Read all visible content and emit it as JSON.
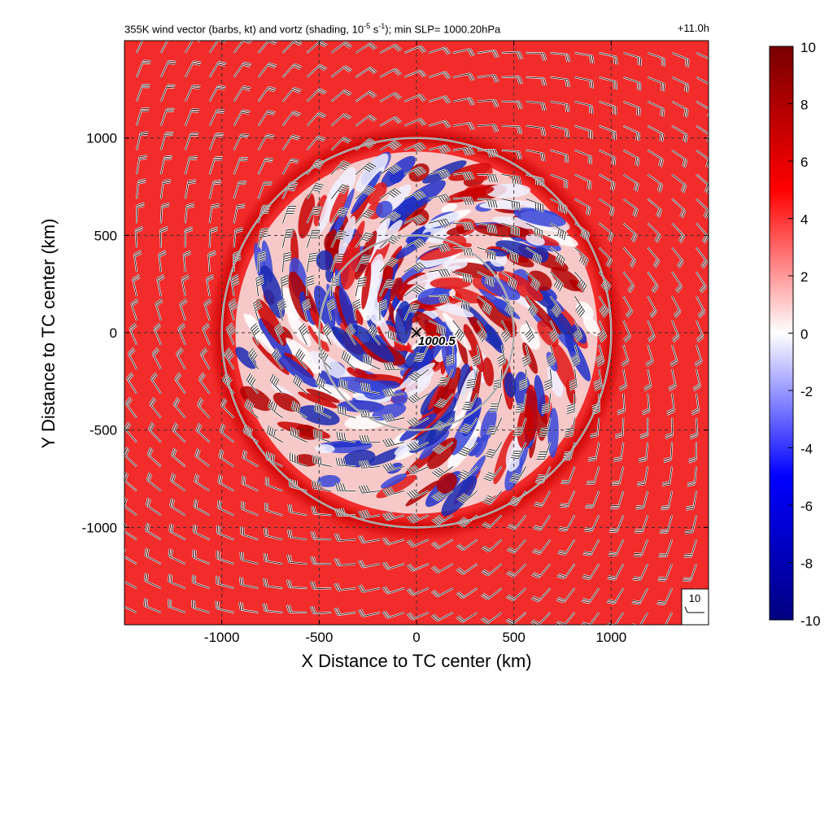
{
  "title_left_pre": "355K wind vector (barbs, kt) and vortz (shading, 10",
  "title_left_exp1": "-5",
  "title_left_mid": " s",
  "title_left_exp2": "-1",
  "title_left_post": "); min SLP= 1000.20hPa",
  "title_right": "+11.0h",
  "colors": {
    "ambient_red": "#f22b2b",
    "ring_red": "#c80000",
    "blue": "#2030c8",
    "white": "#ffffff",
    "ring_line": "#c8c8c8",
    "grid": "#333333"
  },
  "chart_data": {
    "type": "heatmap",
    "title": "355K wind vector (barbs, kt) and vortz (shading, 10^-5 s^-1); min SLP= 1000.20hPa",
    "xlabel": "X Distance to TC center (km)",
    "ylabel": "Y Distance to TC center (km)",
    "xlim": [
      -1500,
      1500
    ],
    "ylim": [
      -1500,
      1500
    ],
    "xticks": [
      -1000,
      -500,
      0,
      500,
      1000
    ],
    "yticks": [
      -1000,
      -500,
      0,
      500,
      1000
    ],
    "xtick_labels": [
      "-1000",
      "-500",
      "0",
      "500",
      "1000"
    ],
    "ytick_labels": [
      "-1000",
      "-500",
      "0",
      "500",
      "1000"
    ],
    "grid": true,
    "range_rings_km": [
      500,
      1000
    ],
    "center_marker": {
      "x": 0,
      "y": 0,
      "label": "1000.5"
    },
    "colorbar": {
      "min": -10,
      "max": 10,
      "ticks": [
        10,
        8,
        6,
        4,
        2,
        0,
        -2,
        -4,
        -6,
        -8,
        -10
      ],
      "tick_labels": [
        "10",
        "8",
        "6",
        "4",
        "2",
        "0",
        "-2",
        "-4",
        "-6",
        "-8",
        "-10"
      ],
      "colormap": "blue-white-red"
    },
    "reference_barb": {
      "label": "10",
      "value_kt": 10
    }
  }
}
